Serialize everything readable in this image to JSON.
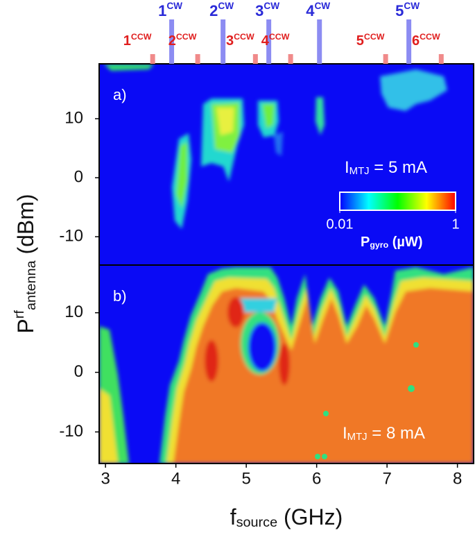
{
  "chart_data": [
    {
      "type": "contour",
      "panel_label": "a)",
      "annotation": {
        "main": "I",
        "sub": "MTJ",
        "rest": " = 5 mA"
      },
      "xlim": [
        2.91,
        8.23
      ],
      "ylim": [
        -14.8,
        19.3
      ],
      "yticks": [
        -10,
        0,
        10
      ],
      "cw_modes": [
        {
          "label": "1",
          "sup": "CW",
          "x": 3.94
        },
        {
          "label": "2",
          "sup": "CW",
          "x": 4.67
        },
        {
          "label": "3",
          "sup": "CW",
          "x": 5.32
        },
        {
          "label": "4",
          "sup": "CW",
          "x": 6.04
        },
        {
          "label": "5",
          "sup": "CW",
          "x": 7.31
        }
      ],
      "ccw_modes": [
        {
          "label": "1",
          "sup": "CCW",
          "x": 3.67
        },
        {
          "label": "2",
          "sup": "CCW",
          "x": 4.31
        },
        {
          "label": "3",
          "sup": "CCW",
          "x": 5.13
        },
        {
          "label": "4",
          "sup": "CCW",
          "x": 5.63
        },
        {
          "label": "5",
          "sup": "CCW",
          "x": 6.98
        },
        {
          "label": "6",
          "sup": "CCW",
          "x": 7.77
        }
      ],
      "colorbar": {
        "log": true,
        "colors": [
          "#0000ff",
          "#00ffff",
          "#00ff00",
          "#ffff00",
          "#ff0000"
        ],
        "ticks": [
          {
            "value": 0.01,
            "label": "0.01"
          },
          1
        ],
        "label": {
          "main": "P",
          "sub": "gyro",
          "rest": " (µW)"
        }
      }
    },
    {
      "type": "contour",
      "panel_label": "b)",
      "annotation": {
        "main": "I",
        "sub": "MTJ",
        "rest": " = 8 mA"
      },
      "xlim": [
        2.91,
        8.23
      ],
      "ylim": [
        -15.3,
        18
      ],
      "yticks": [
        -10,
        0,
        10
      ],
      "xticks": [
        3,
        4,
        5,
        6,
        7,
        8
      ],
      "xlabel": {
        "main": "f",
        "sub": "source",
        "rest": " (GHz)"
      },
      "ylabel": {
        "main": "P",
        "sup": "rf",
        "sub": "antenna",
        "rest": " (dBm)"
      }
    }
  ]
}
